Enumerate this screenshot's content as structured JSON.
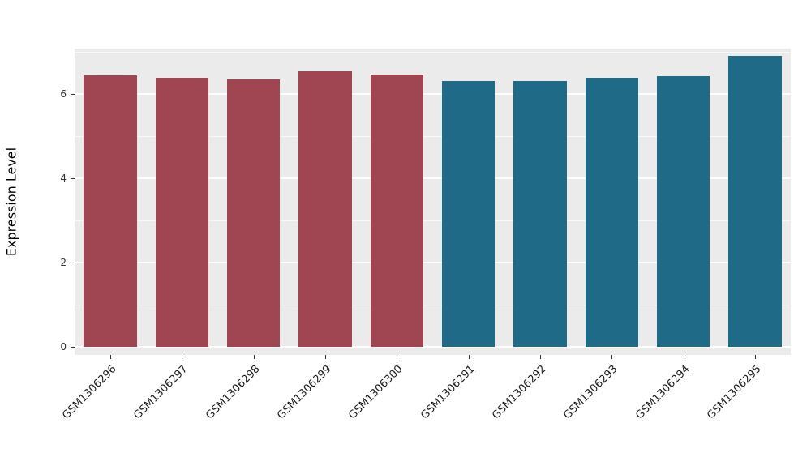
{
  "chart_data": {
    "type": "bar",
    "title": "",
    "xlabel": "",
    "ylabel": "Expression Level",
    "categories": [
      "GSM1306296",
      "GSM1306297",
      "GSM1306298",
      "GSM1306299",
      "GSM1306300",
      "GSM1306291",
      "GSM1306292",
      "GSM1306293",
      "GSM1306294",
      "GSM1306295"
    ],
    "values": [
      6.44,
      6.38,
      6.35,
      6.53,
      6.46,
      6.3,
      6.3,
      6.38,
      6.43,
      6.9
    ],
    "bar_colors": [
      "#a04652",
      "#a04652",
      "#a04652",
      "#a04652",
      "#a04652",
      "#1f6b87",
      "#1f6b87",
      "#1f6b87",
      "#1f6b87",
      "#1f6b87"
    ],
    "ylim": [
      0,
      7.25
    ],
    "yticks": [
      0,
      2,
      4,
      6
    ],
    "minor_ticks": [
      1,
      3,
      5,
      7
    ],
    "grid": "on",
    "legend_position": "none",
    "panel_bg": "#ebebeb",
    "grid_color": "#ffffff",
    "axis_text_color": "#333333"
  }
}
